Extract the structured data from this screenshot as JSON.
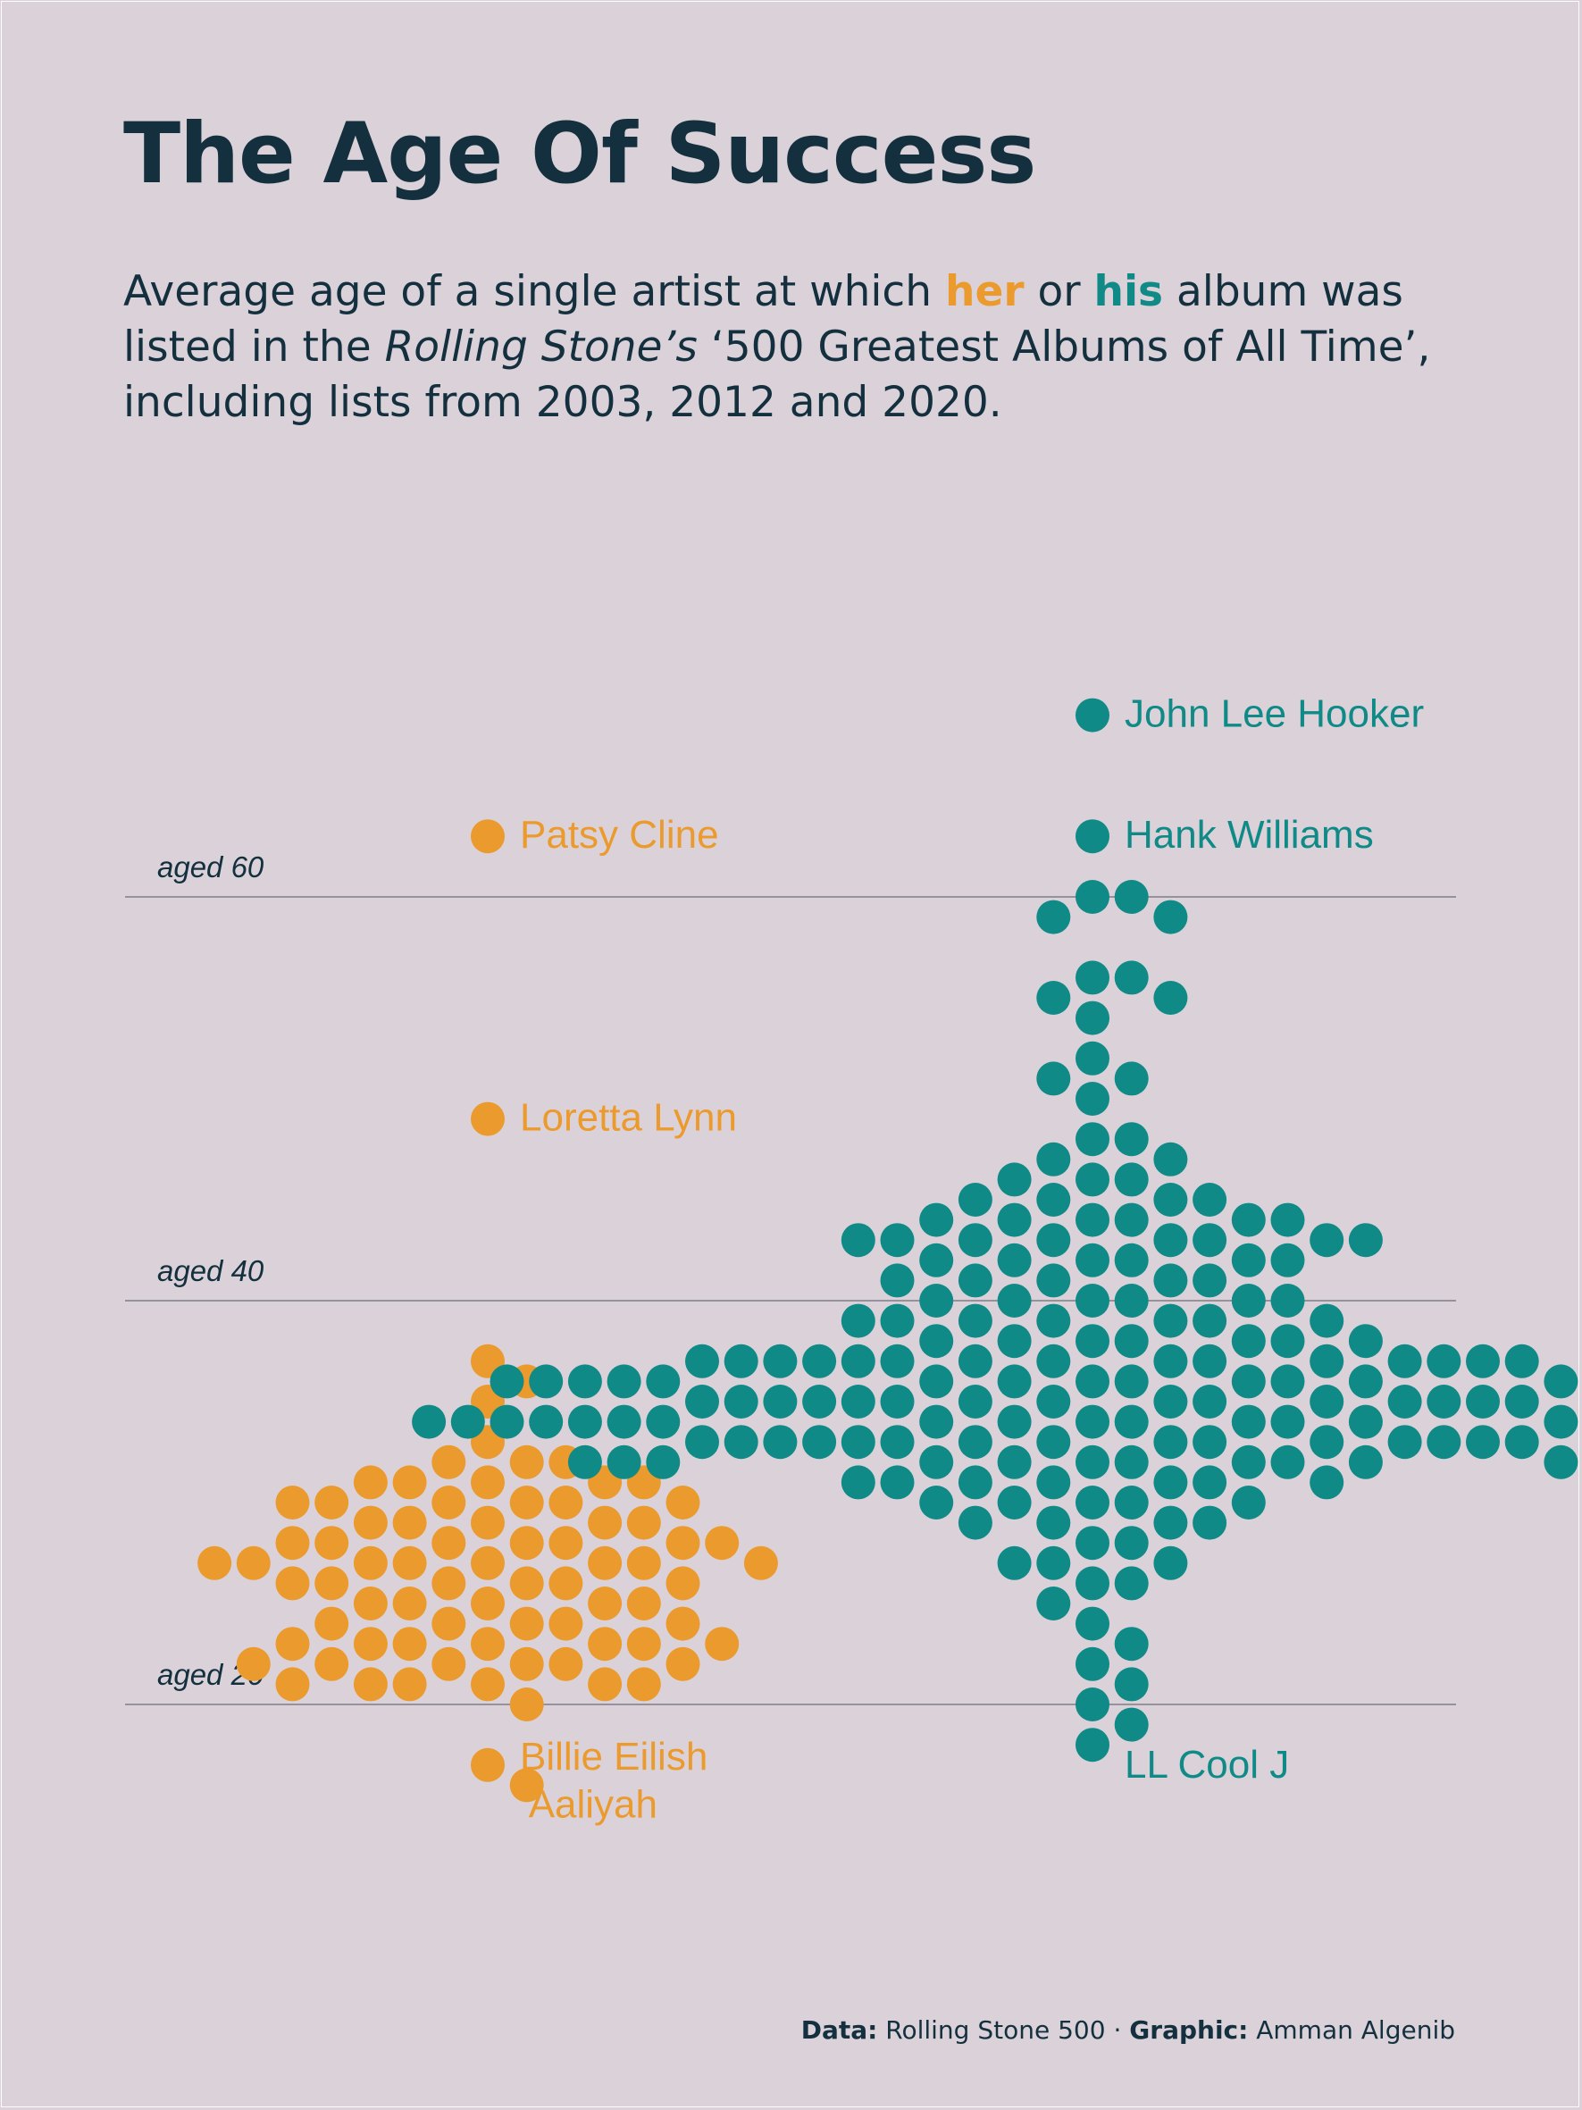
{
  "title": "The Age Of Success",
  "subtitle": {
    "part1": "Average age of a single artist at which ",
    "her": "her",
    "part2": " or ",
    "his": "his",
    "part3": " album was listed in the ",
    "publication": "Rolling Stone’s",
    "part4": " ‘500 Greatest Albums of All Time’, including lists from 2003, 2012 and 2020."
  },
  "footer": {
    "data_label": "Data:",
    "data_value": "Rolling Stone 500",
    "separator": "·",
    "graphic_label": "Graphic:",
    "graphic_value": "Amman Algenib"
  },
  "colors": {
    "background": "#dbd2d9",
    "female": "#eb9a2d",
    "male": "#0f8a87",
    "text": "#14303e"
  },
  "chart_data": {
    "type": "scatter",
    "title": "The Age Of Success",
    "xlabel": "",
    "ylabel": "",
    "y_unit": "age",
    "ylim": [
      19,
      72
    ],
    "gridlines": [
      20,
      40,
      60
    ],
    "grid_labels": [
      "aged 20",
      "aged 40",
      "aged 60"
    ],
    "series": [
      {
        "key": "female",
        "color": "#eb9a2d",
        "ages": [
          63,
          49,
          37,
          36,
          35,
          33,
          32,
          32,
          32,
          31,
          31,
          31,
          31,
          31,
          30,
          30,
          30,
          30,
          30,
          30,
          29,
          29,
          29,
          29,
          29,
          28,
          28,
          28,
          28,
          28,
          28,
          28,
          27,
          27,
          27,
          27,
          27,
          27,
          27,
          27,
          26,
          26,
          26,
          26,
          26,
          26,
          25,
          25,
          25,
          25,
          25,
          24,
          24,
          24,
          24,
          24,
          23,
          23,
          23,
          23,
          23,
          23,
          23,
          22,
          22,
          22,
          22,
          22,
          22,
          21,
          21,
          21,
          21,
          21,
          21,
          20,
          17,
          16
        ],
        "labeled": [
          {
            "name": "Patsy Cline",
            "age": 63
          },
          {
            "name": "Loretta Lynn",
            "age": 49
          },
          {
            "name": "Billie Eilish",
            "age": 17
          },
          {
            "name": "Aaliyah",
            "age": 16
          }
        ]
      },
      {
        "key": "male",
        "color": "#0f8a87",
        "ages": [
          69,
          63,
          60,
          60,
          59,
          59,
          56,
          56,
          55,
          55,
          54,
          52,
          51,
          51,
          50,
          48,
          48,
          47,
          47,
          46,
          46,
          46,
          45,
          45,
          45,
          45,
          44,
          44,
          44,
          44,
          44,
          44,
          43,
          43,
          43,
          43,
          43,
          43,
          43,
          43,
          42,
          42,
          42,
          42,
          42,
          42,
          41,
          41,
          41,
          41,
          41,
          40,
          40,
          40,
          40,
          40,
          40,
          39,
          39,
          39,
          39,
          39,
          39,
          39,
          38,
          38,
          38,
          38,
          38,
          38,
          38,
          37,
          37,
          37,
          37,
          37,
          37,
          37,
          37,
          37,
          37,
          37,
          37,
          37,
          37,
          37,
          36,
          36,
          36,
          36,
          36,
          36,
          36,
          36,
          36,
          36,
          36,
          36,
          36,
          36,
          36,
          36,
          35,
          35,
          35,
          35,
          35,
          35,
          35,
          35,
          35,
          35,
          35,
          35,
          35,
          35,
          35,
          35,
          34,
          34,
          34,
          34,
          34,
          34,
          34,
          34,
          34,
          34,
          34,
          34,
          34,
          34,
          34,
          34,
          34,
          34,
          34,
          33,
          33,
          33,
          33,
          33,
          33,
          33,
          33,
          33,
          33,
          33,
          33,
          33,
          33,
          33,
          33,
          32,
          32,
          32,
          32,
          32,
          32,
          32,
          32,
          32,
          32,
          32,
          32,
          31,
          31,
          31,
          31,
          31,
          31,
          31,
          30,
          30,
          30,
          30,
          30,
          29,
          29,
          29,
          29,
          28,
          28,
          27,
          27,
          27,
          26,
          26,
          25,
          24,
          23,
          22,
          21,
          20,
          19,
          18
        ],
        "labeled": [
          {
            "name": "John Lee Hooker",
            "age": 69
          },
          {
            "name": "Hank Williams",
            "age": 63
          },
          {
            "name": "LL Cool J",
            "age": 18
          }
        ]
      }
    ]
  }
}
